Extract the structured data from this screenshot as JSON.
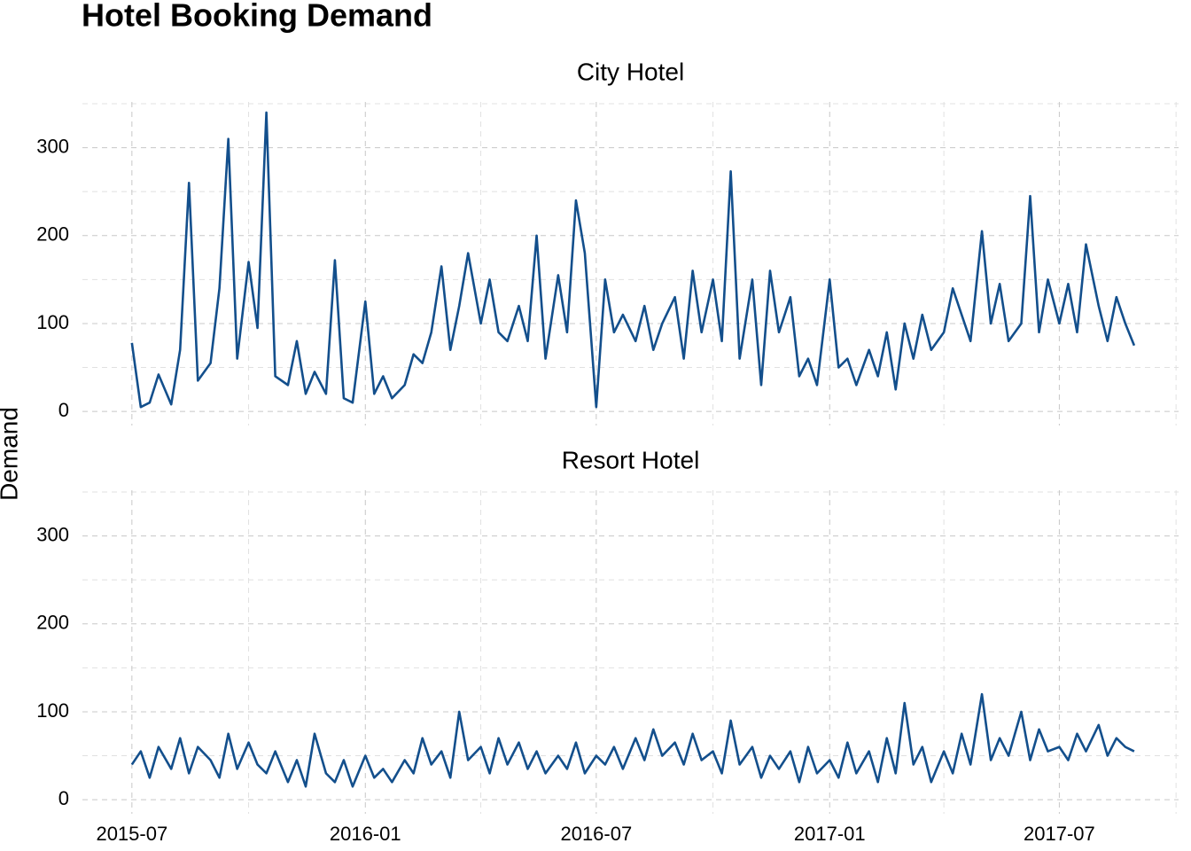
{
  "title": "Hotel Booking Demand",
  "ylabel": "Demand",
  "chart_data": [
    {
      "type": "line",
      "title": "City Hotel",
      "color": "#134f8c",
      "grid": true,
      "x": [
        "2015-07-01",
        "2015-07-08",
        "2015-07-15",
        "2015-07-22",
        "2015-08-01",
        "2015-08-08",
        "2015-08-15",
        "2015-08-22",
        "2015-09-01",
        "2015-09-08",
        "2015-09-15",
        "2015-09-22",
        "2015-10-01",
        "2015-10-08",
        "2015-10-15",
        "2015-10-22",
        "2015-11-01",
        "2015-11-08",
        "2015-11-15",
        "2015-11-22",
        "2015-12-01",
        "2015-12-08",
        "2015-12-15",
        "2015-12-22",
        "2016-01-01",
        "2016-01-08",
        "2016-01-15",
        "2016-01-22",
        "2016-02-01",
        "2016-02-08",
        "2016-02-15",
        "2016-02-22",
        "2016-03-01",
        "2016-03-08",
        "2016-03-15",
        "2016-03-22",
        "2016-04-01",
        "2016-04-08",
        "2016-04-15",
        "2016-04-22",
        "2016-05-01",
        "2016-05-08",
        "2016-05-15",
        "2016-05-22",
        "2016-06-01",
        "2016-06-08",
        "2016-06-15",
        "2016-06-22",
        "2016-07-01",
        "2016-07-08",
        "2016-07-15",
        "2016-07-22",
        "2016-08-01",
        "2016-08-08",
        "2016-08-15",
        "2016-08-22",
        "2016-09-01",
        "2016-09-08",
        "2016-09-15",
        "2016-09-22",
        "2016-10-01",
        "2016-10-08",
        "2016-10-15",
        "2016-10-22",
        "2016-11-01",
        "2016-11-08",
        "2016-11-15",
        "2016-11-22",
        "2016-12-01",
        "2016-12-08",
        "2016-12-15",
        "2016-12-22",
        "2017-01-01",
        "2017-01-08",
        "2017-01-15",
        "2017-01-22",
        "2017-02-01",
        "2017-02-08",
        "2017-02-15",
        "2017-02-22",
        "2017-03-01",
        "2017-03-08",
        "2017-03-15",
        "2017-03-22",
        "2017-04-01",
        "2017-04-08",
        "2017-04-15",
        "2017-04-22",
        "2017-05-01",
        "2017-05-08",
        "2017-05-15",
        "2017-05-22",
        "2017-06-01",
        "2017-06-08",
        "2017-06-15",
        "2017-06-22",
        "2017-07-01",
        "2017-07-08",
        "2017-07-15",
        "2017-07-22",
        "2017-08-01",
        "2017-08-08",
        "2017-08-15",
        "2017-08-22",
        "2017-08-29"
      ],
      "values": [
        78,
        5,
        10,
        42,
        8,
        70,
        260,
        35,
        55,
        140,
        310,
        60,
        170,
        95,
        340,
        40,
        30,
        80,
        20,
        45,
        20,
        172,
        15,
        10,
        125,
        20,
        40,
        15,
        30,
        65,
        55,
        90,
        165,
        70,
        120,
        180,
        100,
        150,
        90,
        80,
        120,
        80,
        200,
        60,
        155,
        90,
        240,
        180,
        5,
        150,
        90,
        110,
        80,
        120,
        70,
        100,
        130,
        60,
        160,
        90,
        150,
        80,
        273,
        60,
        150,
        30,
        160,
        90,
        130,
        40,
        60,
        30,
        150,
        50,
        60,
        30,
        70,
        40,
        90,
        25,
        100,
        60,
        110,
        70,
        90,
        140,
        110,
        80,
        205,
        100,
        145,
        80,
        100,
        245,
        90,
        150,
        100,
        145,
        90,
        190,
        120,
        80,
        130,
        100,
        75
      ],
      "xlim": [
        "2015-05-23",
        "2017-10-03"
      ],
      "xticks": [
        "2015-07",
        "2016-01",
        "2016-07",
        "2017-01",
        "2017-07"
      ],
      "xminor": [
        "2015-10",
        "2016-04",
        "2016-10",
        "2017-04",
        "2017-10"
      ],
      "ylim": [
        -16,
        352
      ],
      "yticks": [
        0,
        100,
        200,
        300
      ],
      "yminor": [
        50,
        150,
        250,
        350
      ]
    },
    {
      "type": "line",
      "title": "Resort Hotel",
      "color": "#134f8c",
      "grid": true,
      "x": [
        "2015-07-01",
        "2015-07-08",
        "2015-07-15",
        "2015-07-22",
        "2015-08-01",
        "2015-08-08",
        "2015-08-15",
        "2015-08-22",
        "2015-09-01",
        "2015-09-08",
        "2015-09-15",
        "2015-09-22",
        "2015-10-01",
        "2015-10-08",
        "2015-10-15",
        "2015-10-22",
        "2015-11-01",
        "2015-11-08",
        "2015-11-15",
        "2015-11-22",
        "2015-12-01",
        "2015-12-08",
        "2015-12-15",
        "2015-12-22",
        "2016-01-01",
        "2016-01-08",
        "2016-01-15",
        "2016-01-22",
        "2016-02-01",
        "2016-02-08",
        "2016-02-15",
        "2016-02-22",
        "2016-03-01",
        "2016-03-08",
        "2016-03-15",
        "2016-03-22",
        "2016-04-01",
        "2016-04-08",
        "2016-04-15",
        "2016-04-22",
        "2016-05-01",
        "2016-05-08",
        "2016-05-15",
        "2016-05-22",
        "2016-06-01",
        "2016-06-08",
        "2016-06-15",
        "2016-06-22",
        "2016-07-01",
        "2016-07-08",
        "2016-07-15",
        "2016-07-22",
        "2016-08-01",
        "2016-08-08",
        "2016-08-15",
        "2016-08-22",
        "2016-09-01",
        "2016-09-08",
        "2016-09-15",
        "2016-09-22",
        "2016-10-01",
        "2016-10-08",
        "2016-10-15",
        "2016-10-22",
        "2016-11-01",
        "2016-11-08",
        "2016-11-15",
        "2016-11-22",
        "2016-12-01",
        "2016-12-08",
        "2016-12-15",
        "2016-12-22",
        "2017-01-01",
        "2017-01-08",
        "2017-01-15",
        "2017-01-22",
        "2017-02-01",
        "2017-02-08",
        "2017-02-15",
        "2017-02-22",
        "2017-03-01",
        "2017-03-08",
        "2017-03-15",
        "2017-03-22",
        "2017-04-01",
        "2017-04-08",
        "2017-04-15",
        "2017-04-22",
        "2017-05-01",
        "2017-05-08",
        "2017-05-15",
        "2017-05-22",
        "2017-06-01",
        "2017-06-08",
        "2017-06-15",
        "2017-06-22",
        "2017-07-01",
        "2017-07-08",
        "2017-07-15",
        "2017-07-22",
        "2017-08-01",
        "2017-08-08",
        "2017-08-15",
        "2017-08-22",
        "2017-08-29"
      ],
      "values": [
        40,
        55,
        25,
        60,
        35,
        70,
        30,
        60,
        45,
        25,
        75,
        35,
        65,
        40,
        30,
        55,
        20,
        45,
        15,
        75,
        30,
        20,
        45,
        15,
        50,
        25,
        35,
        20,
        45,
        30,
        70,
        40,
        55,
        25,
        100,
        45,
        60,
        30,
        70,
        40,
        65,
        35,
        55,
        30,
        50,
        35,
        65,
        30,
        50,
        40,
        60,
        35,
        70,
        45,
        80,
        50,
        65,
        40,
        75,
        45,
        55,
        30,
        90,
        40,
        60,
        25,
        50,
        35,
        55,
        20,
        60,
        30,
        45,
        25,
        65,
        30,
        55,
        20,
        70,
        30,
        110,
        40,
        60,
        20,
        55,
        30,
        75,
        40,
        120,
        45,
        70,
        50,
        100,
        45,
        80,
        55,
        60,
        45,
        75,
        55,
        85,
        50,
        70,
        60,
        55
      ],
      "xlim": [
        "2015-05-23",
        "2017-10-03"
      ],
      "xticks": [
        "2015-07",
        "2016-01",
        "2016-07",
        "2017-01",
        "2017-07"
      ],
      "xminor": [
        "2015-10",
        "2016-04",
        "2016-10",
        "2017-04",
        "2017-10"
      ],
      "ylim": [
        -16,
        352
      ],
      "yticks": [
        0,
        100,
        200,
        300
      ],
      "yminor": [
        50,
        150,
        250,
        350
      ]
    }
  ]
}
